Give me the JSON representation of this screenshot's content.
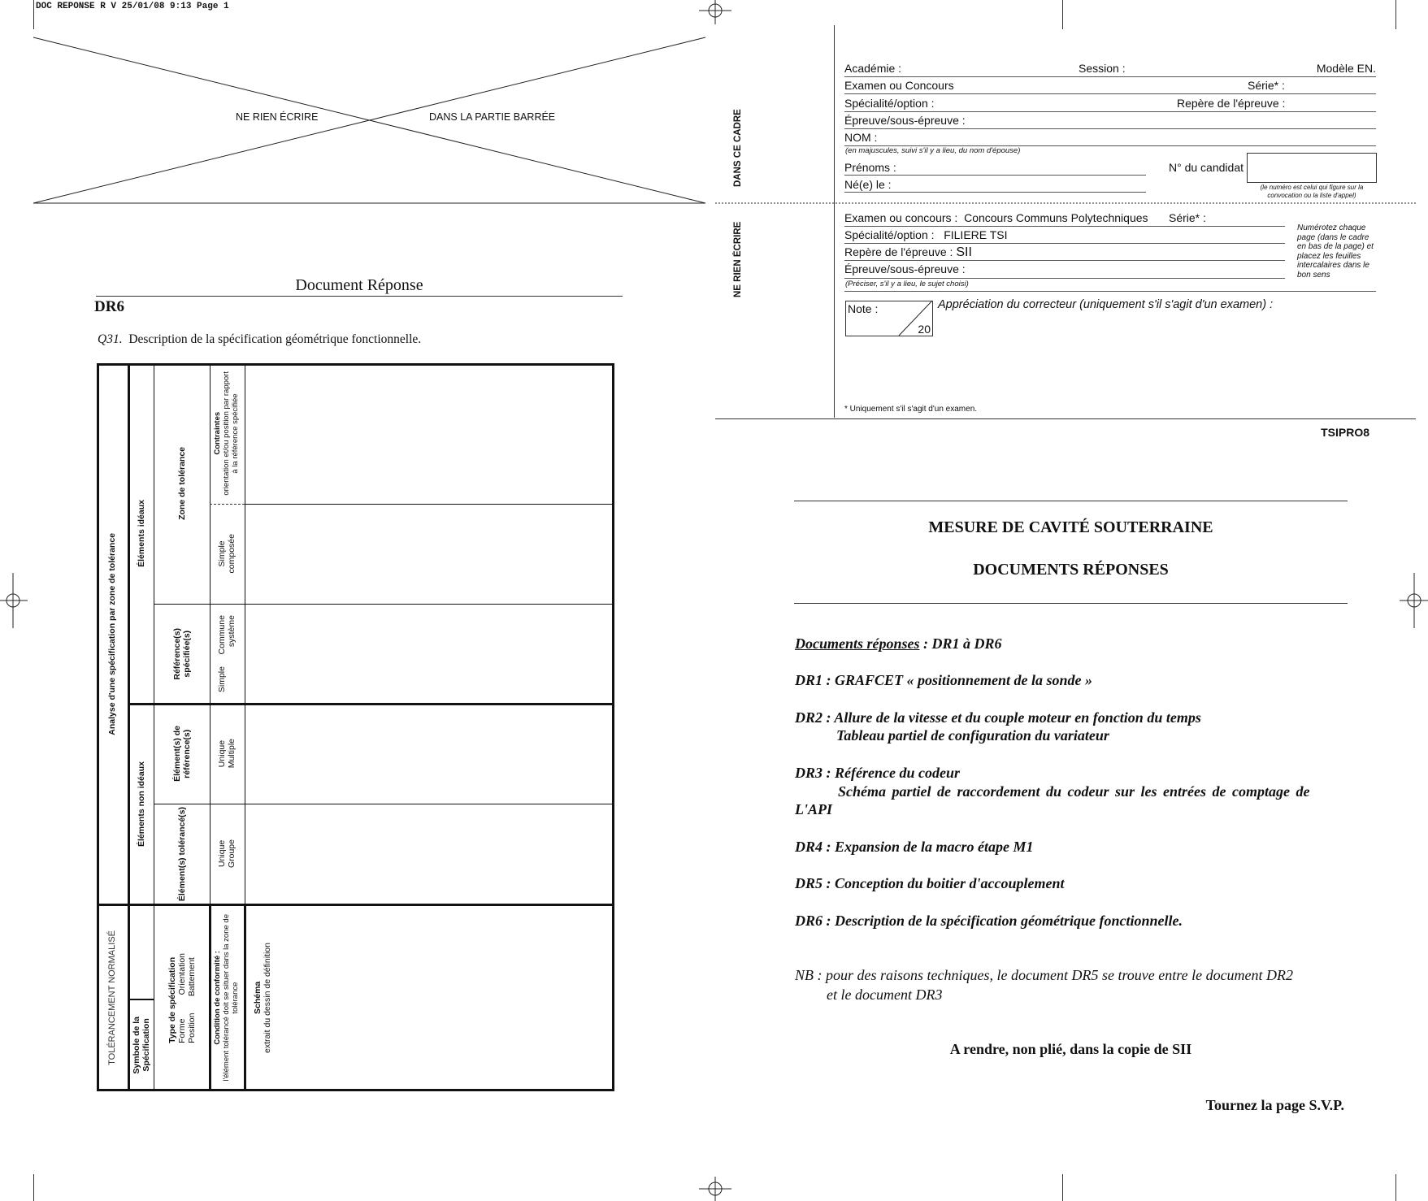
{
  "print_header": "DOC REPONSE R V  25/01/08  9:13  Page 1",
  "barred_area": {
    "left": "NE RIEN ÉCRIRE",
    "right": "DANS LA PARTIE BARRÉE"
  },
  "side_labels": {
    "top": "DANS CE CADRE",
    "bottom": "NE RIEN ÉCRIRE"
  },
  "form_top": {
    "academie": "Académie :",
    "session": "Session :",
    "modele": "Modèle EN.",
    "examen": "Examen ou Concours",
    "serie": "Série* :",
    "specialite": "Spécialité/option :",
    "repere": "Repère de l'épreuve :",
    "epreuve": "Épreuve/sous-épreuve :",
    "nom": "NOM :",
    "nom_note": "(en majuscules, suivi s'il y a lieu, du nom d'épouse)",
    "prenoms": "Prénoms :",
    "candidat": "N° du candidat",
    "ne_le": "Né(e) le :",
    "candidat_note_1": "(le numéro est celui qui figure sur la",
    "candidat_note_2": "convocation ou la liste d'appel)"
  },
  "form_bottom": {
    "examen_label": "Examen ou concours :",
    "examen_value": "Concours Communs Polytechniques",
    "serie": "Série* :",
    "specialite_label": "Spécialité/option :",
    "specialite_value": "FILIERE  TSI",
    "repere_label": "Repère de l'épreuve :",
    "repere_value": "SII",
    "epreuve": "Épreuve/sous-épreuve :",
    "preciser": "(Préciser, s'il y a lieu, le sujet choisi)",
    "side_note": [
      "Numérotez chaque",
      "page (dans le cadre",
      "en bas de la page) et",
      "placez les feuilles",
      "intercalaires dans le",
      "bon sens"
    ],
    "note_label": "Note :",
    "note_max": "20",
    "appreciation": "Appréciation du correcteur (uniquement s'il s'agit d'un examen) :",
    "footnote": "* Uniquement s'il s'agit d'un examen."
  },
  "code": "TSIPRO8",
  "right_page": {
    "title": "MESURE DE CAVITÉ SOUTERRAINE",
    "subtitle": "DOCUMENTS RÉPONSES",
    "docs_label": "Documents réponses",
    "docs_value": " : DR1 à DR6",
    "items": [
      "DR1 : GRAFCET « positionnement de la sonde »",
      "DR2 : Allure de la vitesse et du couple moteur en fonction du temps",
      "Tableau partiel de configuration du variateur",
      "DR3 : Référence du codeur",
      "Schéma partiel de raccordement du codeur sur les entrées de comptage de",
      "L'API",
      "DR4 : Expansion de la macro étape M1",
      "DR5 : Conception du boitier d'accouplement",
      "DR6 : Description de la spécification géométrique fonctionnelle."
    ],
    "nb_1": "NB : pour des raisons techniques, le document DR5 se trouve entre le document DR2",
    "nb_2": "et le document DR3",
    "return_note": "A rendre, non plié, dans la copie de SII",
    "turn_page": "Tournez la page S.V.P."
  },
  "left_page": {
    "doc_title": "Document Réponse",
    "dr": "DR6",
    "question_num": "Q31.",
    "question": "Description de la spécification géométrique fonctionnelle.",
    "table": {
      "analyse": "Analyse d'une spécification par zone de tolérance",
      "ideaux": "Éléments idéaux",
      "zone": "Zone de tolérance",
      "contraintes_t": "Contraintes",
      "contraintes_1": "orientation et/ou position par rapport",
      "contraintes_2": "à la référence spécifiée",
      "simple": "Simple",
      "composee": "composée",
      "ref_spec_1": "Référence(s)",
      "ref_spec_2": "spécifiée(s)",
      "simple_commune": "Simple     Commune",
      "systeme": "système",
      "non_ideaux": "Éléments non idéaux",
      "elem_ref_1": "Élément(s) de",
      "elem_ref_2": "référence(s)",
      "unique": "Unique",
      "multiple": "Multiple",
      "elem_tol": "Élément(s) tolérancé(s)",
      "unique2": "Unique",
      "groupe": "Groupe",
      "tolerancement": "TOLÉRANCEMENT NORMALISÉ",
      "symbole_1": "Symbole de la",
      "symbole_2": "Spécification",
      "type_t": "Type de spécification",
      "type_1": "Forme          Orientation",
      "type_2": "Position       Battement",
      "cond_t": "Condition de conformité :",
      "cond_1": "l'élément tolérancé doit se situer dans la zone de",
      "cond_2": "tolérance",
      "schema_t": "Schéma",
      "schema_1": "extrait du dessin de définition"
    }
  }
}
